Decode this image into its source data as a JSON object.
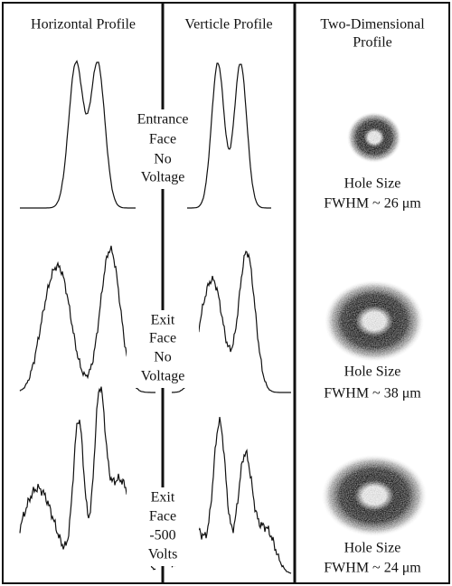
{
  "headers": [
    "Horizontal Profile",
    "Verticle Profile",
    [
      "Two-Dimensional",
      "Profile"
    ]
  ],
  "rows": [
    {
      "label": [
        "Entrance",
        "Face",
        "No",
        "Voltage"
      ],
      "hole": "Hole Size",
      "fwhm": "FWHM ~ 26 μm"
    },
    {
      "label": [
        "Exit",
        "Face",
        "No",
        "Voltage"
      ],
      "hole": "Hole Size",
      "fwhm": "FWHM ~ 38 μm"
    },
    {
      "label": [
        "Exit",
        "Face",
        "-500",
        "Volts"
      ],
      "hole": "Hole Size",
      "fwhm": "FWHM ~ 24 μm"
    }
  ]
}
